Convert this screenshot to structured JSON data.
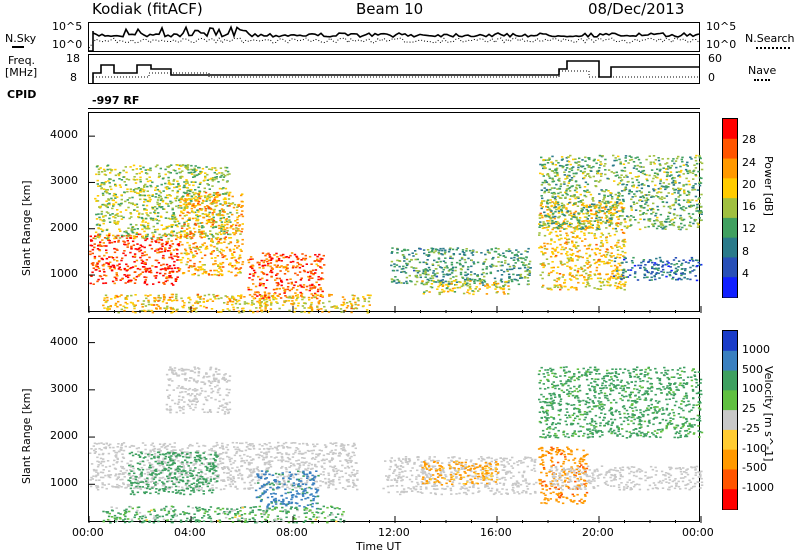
{
  "header": {
    "station": "Kodiak (fitACF)",
    "beam": "Beam 10",
    "date": "08/Dec/2013"
  },
  "top_panels": {
    "nsky_label": "N.Sky",
    "nsearch_label": "N.Search",
    "count_ticks": [
      "10^5",
      "10^0"
    ],
    "freq_label_line1": "Freq.",
    "freq_label_line2": "[MHz]",
    "freq_ticks": [
      "18",
      "8"
    ],
    "nave_label": "Nave",
    "nave_ticks": [
      "60",
      "0"
    ],
    "cpid_label": "CPID",
    "cpid_value": "-997 RF"
  },
  "chart_data": [
    {
      "type": "heatmap",
      "name": "power",
      "ylabel": "Slant Range [km]",
      "xlabel": "Time UT",
      "ylim": [
        180,
        4500
      ],
      "y_ticks": [
        "4000",
        "3000",
        "2000",
        "1000"
      ],
      "x_ticks": [
        "00:00",
        "04:00",
        "08:00",
        "12:00",
        "16:00",
        "20:00",
        "00:00"
      ],
      "colorbar": {
        "label": "Power [dB]",
        "ticks": [
          "28",
          "24",
          "20",
          "16",
          "12",
          "8",
          "4"
        ],
        "colors": [
          "#ff0000",
          "#ff5500",
          "#ff9900",
          "#ffcc00",
          "#a0c040",
          "#40a060",
          "#2a7a8a",
          "#2850b8",
          "#1020ff"
        ]
      },
      "regions": [
        {
          "t0": 0.0,
          "t1": 3.5,
          "r0": 800,
          "r1": 1900,
          "level": 26
        },
        {
          "t0": 0.2,
          "t1": 5.5,
          "r0": 1800,
          "r1": 3400,
          "level": 14
        },
        {
          "t0": 3.5,
          "t1": 6.0,
          "r0": 1000,
          "r1": 2800,
          "level": 20
        },
        {
          "t0": 6.2,
          "t1": 9.2,
          "r0": 500,
          "r1": 1500,
          "level": 24
        },
        {
          "t0": 0.5,
          "t1": 11.0,
          "r0": 200,
          "r1": 600,
          "level": 18
        },
        {
          "t0": 11.8,
          "t1": 17.3,
          "r0": 800,
          "r1": 1600,
          "level": 10
        },
        {
          "t0": 13.0,
          "t1": 16.5,
          "r0": 600,
          "r1": 900,
          "level": 16
        },
        {
          "t0": 17.6,
          "t1": 21.0,
          "r0": 700,
          "r1": 2600,
          "level": 18
        },
        {
          "t0": 17.6,
          "t1": 24.0,
          "r0": 2000,
          "r1": 3600,
          "level": 12
        },
        {
          "t0": 20.5,
          "t1": 24.0,
          "r0": 900,
          "r1": 1400,
          "level": 6
        }
      ]
    },
    {
      "type": "heatmap",
      "name": "velocity",
      "ylabel": "Slant Range [km]",
      "xlabel": "Time UT",
      "ylim": [
        180,
        4500
      ],
      "y_ticks": [
        "4000",
        "3000",
        "2000",
        "1000"
      ],
      "x_ticks": [
        "00:00",
        "04:00",
        "08:00",
        "12:00",
        "16:00",
        "20:00",
        "00:00"
      ],
      "colorbar": {
        "label": "Velocity [m s^-1]",
        "ticks": [
          "1000",
          "500",
          "100",
          "25",
          "-25",
          "-100",
          "-500",
          "-1000"
        ],
        "colors": [
          "#1a3cc8",
          "#3a80c0",
          "#3ea060",
          "#60c040",
          "#c8c8c8",
          "#ffcc33",
          "#ff9900",
          "#ff5500",
          "#ff0000"
        ]
      },
      "regions": [
        {
          "t0": 0.0,
          "t1": 10.5,
          "r0": 900,
          "r1": 1900,
          "level": 0
        },
        {
          "t0": 1.5,
          "t1": 5.0,
          "r0": 800,
          "r1": 1700,
          "level": 300
        },
        {
          "t0": 3.0,
          "t1": 5.5,
          "r0": 2500,
          "r1": 3500,
          "level": 0
        },
        {
          "t0": 6.5,
          "t1": 9.0,
          "r0": 500,
          "r1": 1300,
          "level": 600
        },
        {
          "t0": 0.5,
          "t1": 10.0,
          "r0": 200,
          "r1": 550,
          "level": 120
        },
        {
          "t0": 11.5,
          "t1": 17.5,
          "r0": 800,
          "r1": 1600,
          "level": 0
        },
        {
          "t0": 13.0,
          "t1": 16.0,
          "r0": 1000,
          "r1": 1500,
          "level": -200
        },
        {
          "t0": 17.6,
          "t1": 19.5,
          "r0": 600,
          "r1": 1800,
          "level": -400
        },
        {
          "t0": 18.0,
          "t1": 24.0,
          "r0": 900,
          "r1": 1400,
          "level": 0
        },
        {
          "t0": 17.6,
          "t1": 24.0,
          "r0": 2000,
          "r1": 3500,
          "level": 200
        }
      ]
    }
  ]
}
